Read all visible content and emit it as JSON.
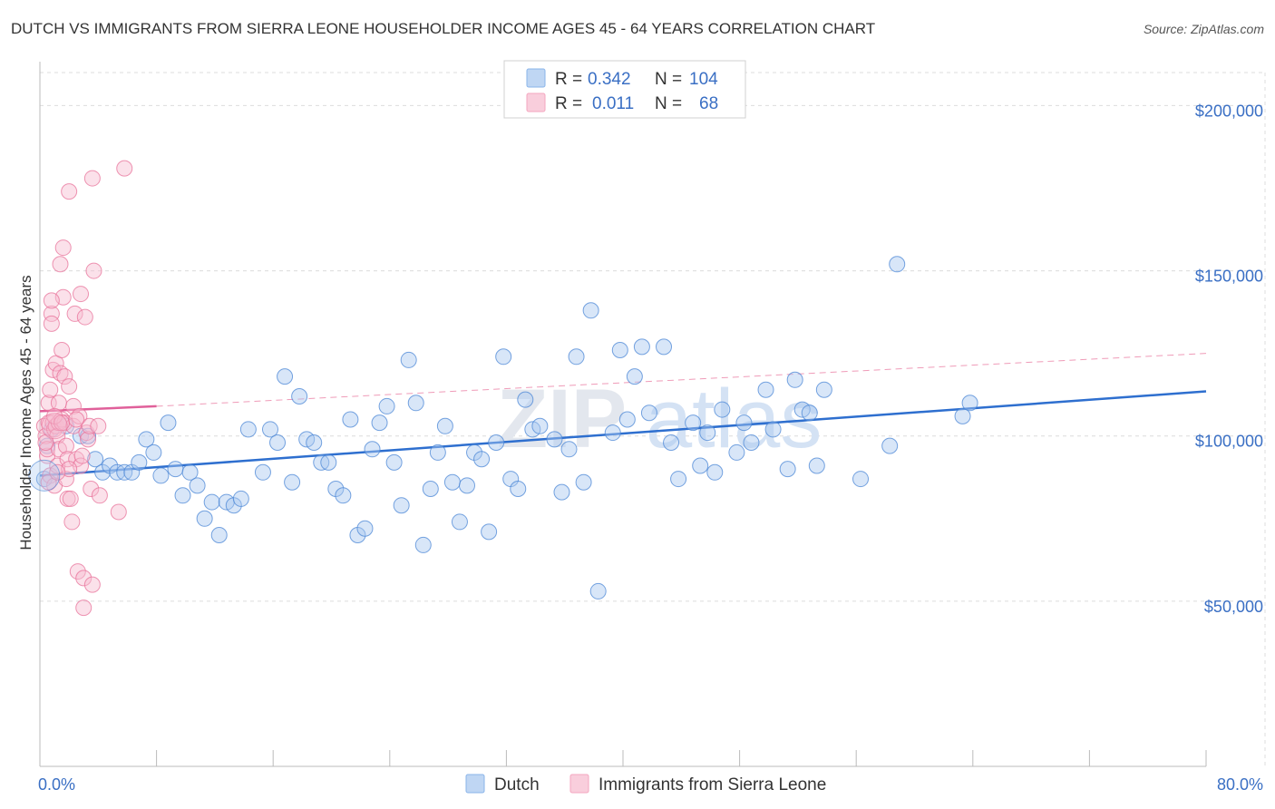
{
  "title": "DUTCH VS IMMIGRANTS FROM SIERRA LEONE HOUSEHOLDER INCOME AGES 45 - 64 YEARS CORRELATION CHART",
  "source": "Source: ZipAtlas.com",
  "watermark": {
    "zip": "ZIP",
    "atlas": "atlas"
  },
  "legend_top": [
    {
      "r_label": "R =",
      "r_value": "0.342",
      "n_label": "N =",
      "n_value": "104",
      "color": "#8ab4ea"
    },
    {
      "r_label": "R =",
      "r_value": "0.011",
      "n_label": "N =",
      "n_value": "68",
      "color": "#f4a6bf"
    }
  ],
  "legend_bottom": [
    {
      "label": "Dutch",
      "color": "#8ab4ea"
    },
    {
      "label": "Immigrants from Sierra Leone",
      "color": "#f4a6bf"
    }
  ],
  "chart_data": {
    "type": "scatter",
    "ylabel": "Householder Income Ages 45 - 64 years",
    "xlabel": "",
    "xlim": [
      0,
      80
    ],
    "ylim": [
      0,
      210000
    ],
    "x_tick_labels": [
      "0.0%",
      "80.0%"
    ],
    "y_ticks": [
      50000,
      100000,
      150000,
      200000
    ],
    "y_tick_labels": [
      "$50,000",
      "$100,000",
      "$150,000",
      "$200,000"
    ],
    "grid": true,
    "legend_position": "top-center",
    "series": [
      {
        "name": "Dutch",
        "color": "#4a86d6",
        "fill": "#a9c8f0",
        "trend": {
          "x": [
            0,
            80
          ],
          "y": [
            88000,
            113500
          ],
          "style": "solid"
        },
        "points": [
          [
            0.3,
            87000
          ],
          [
            0.8,
            102000
          ],
          [
            1.8,
            103000
          ],
          [
            2.8,
            100000
          ],
          [
            3.3,
            100000
          ],
          [
            3.8,
            93000
          ],
          [
            4.3,
            89000
          ],
          [
            4.8,
            91000
          ],
          [
            5.3,
            89000
          ],
          [
            5.8,
            89000
          ],
          [
            6.3,
            89000
          ],
          [
            6.8,
            92000
          ],
          [
            7.3,
            99000
          ],
          [
            7.8,
            95000
          ],
          [
            8.3,
            88000
          ],
          [
            8.8,
            104000
          ],
          [
            9.3,
            90000
          ],
          [
            9.8,
            82000
          ],
          [
            10.3,
            89000
          ],
          [
            10.8,
            85000
          ],
          [
            11.3,
            75000
          ],
          [
            11.8,
            80000
          ],
          [
            12.3,
            70000
          ],
          [
            12.8,
            80000
          ],
          [
            13.3,
            79000
          ],
          [
            13.8,
            81000
          ],
          [
            14.3,
            102000
          ],
          [
            15.3,
            89000
          ],
          [
            15.8,
            102000
          ],
          [
            16.3,
            98000
          ],
          [
            16.8,
            118000
          ],
          [
            17.3,
            86000
          ],
          [
            17.8,
            112000
          ],
          [
            18.3,
            99000
          ],
          [
            18.8,
            98000
          ],
          [
            19.3,
            92000
          ],
          [
            19.8,
            92000
          ],
          [
            20.3,
            84000
          ],
          [
            20.8,
            82000
          ],
          [
            21.3,
            105000
          ],
          [
            21.8,
            70000
          ],
          [
            22.3,
            72000
          ],
          [
            22.8,
            96000
          ],
          [
            23.3,
            104000
          ],
          [
            23.8,
            109000
          ],
          [
            24.3,
            92000
          ],
          [
            24.8,
            79000
          ],
          [
            25.3,
            123000
          ],
          [
            25.8,
            110000
          ],
          [
            26.3,
            67000
          ],
          [
            26.8,
            84000
          ],
          [
            27.3,
            95000
          ],
          [
            27.8,
            103000
          ],
          [
            28.3,
            86000
          ],
          [
            28.8,
            74000
          ],
          [
            29.3,
            85000
          ],
          [
            29.8,
            95000
          ],
          [
            30.3,
            93000
          ],
          [
            30.8,
            71000
          ],
          [
            31.3,
            98000
          ],
          [
            31.8,
            124000
          ],
          [
            32.3,
            87000
          ],
          [
            32.8,
            84000
          ],
          [
            33.3,
            111000
          ],
          [
            33.8,
            102000
          ],
          [
            34.3,
            103000
          ],
          [
            35.3,
            99000
          ],
          [
            35.8,
            83000
          ],
          [
            36.3,
            96000
          ],
          [
            36.8,
            124000
          ],
          [
            37.3,
            86000
          ],
          [
            37.8,
            138000
          ],
          [
            38.3,
            53000
          ],
          [
            39.3,
            101000
          ],
          [
            39.8,
            126000
          ],
          [
            40.3,
            105000
          ],
          [
            40.8,
            118000
          ],
          [
            41.3,
            127000
          ],
          [
            41.8,
            107000
          ],
          [
            42.8,
            127000
          ],
          [
            43.3,
            98000
          ],
          [
            43.8,
            87000
          ],
          [
            44.8,
            104000
          ],
          [
            45.3,
            91000
          ],
          [
            45.8,
            101000
          ],
          [
            46.3,
            89000
          ],
          [
            46.8,
            108000
          ],
          [
            47.8,
            95000
          ],
          [
            48.3,
            104000
          ],
          [
            48.8,
            98000
          ],
          [
            49.8,
            114000
          ],
          [
            50.3,
            102000
          ],
          [
            51.3,
            90000
          ],
          [
            51.8,
            117000
          ],
          [
            52.3,
            108000
          ],
          [
            52.8,
            107000
          ],
          [
            53.3,
            91000
          ],
          [
            53.8,
            114000
          ],
          [
            56.3,
            87000
          ],
          [
            58.3,
            97000
          ],
          [
            58.8,
            152000
          ],
          [
            63.3,
            106000
          ],
          [
            63.8,
            110000
          ],
          [
            0.5,
            97000
          ]
        ]
      },
      {
        "name": "Immigrants from Sierra Leone",
        "color": "#e8719a",
        "fill": "#f7bcd0",
        "trend": {
          "x": [
            0,
            8
          ],
          "y": [
            107500,
            109000
          ],
          "style": "solid",
          "extended": {
            "x": [
              8,
              80
            ],
            "y": [
              109000,
              125000
            ],
            "style": "dashed"
          }
        },
        "points": [
          [
            0.3,
            103000
          ],
          [
            0.4,
            100000
          ],
          [
            0.5,
            94000
          ],
          [
            0.5,
            96000
          ],
          [
            0.6,
            110000
          ],
          [
            0.6,
            104000
          ],
          [
            0.7,
            88000
          ],
          [
            0.7,
            114000
          ],
          [
            0.8,
            137000
          ],
          [
            0.8,
            134000
          ],
          [
            0.9,
            120000
          ],
          [
            0.9,
            104000
          ],
          [
            1.0,
            102000
          ],
          [
            1.0,
            85000
          ],
          [
            1.1,
            122000
          ],
          [
            1.1,
            103000
          ],
          [
            1.2,
            100000
          ],
          [
            1.2,
            91000
          ],
          [
            1.3,
            96000
          ],
          [
            1.3,
            104000
          ],
          [
            1.4,
            152000
          ],
          [
            1.4,
            119000
          ],
          [
            1.5,
            126000
          ],
          [
            1.5,
            105000
          ],
          [
            1.6,
            142000
          ],
          [
            1.6,
            157000
          ],
          [
            1.7,
            118000
          ],
          [
            1.7,
            104000
          ],
          [
            1.8,
            97000
          ],
          [
            1.8,
            87000
          ],
          [
            1.9,
            93000
          ],
          [
            1.9,
            81000
          ],
          [
            2.0,
            174000
          ],
          [
            2.0,
            115000
          ],
          [
            2.1,
            81000
          ],
          [
            2.2,
            74000
          ],
          [
            2.3,
            109000
          ],
          [
            2.3,
            103000
          ],
          [
            2.4,
            137000
          ],
          [
            2.5,
            93000
          ],
          [
            2.6,
            59000
          ],
          [
            2.7,
            106000
          ],
          [
            2.8,
            143000
          ],
          [
            2.8,
            91000
          ],
          [
            2.9,
            94000
          ],
          [
            3.0,
            57000
          ],
          [
            3.0,
            48000
          ],
          [
            3.1,
            136000
          ],
          [
            3.2,
            101000
          ],
          [
            3.3,
            99000
          ],
          [
            3.4,
            103000
          ],
          [
            3.5,
            84000
          ],
          [
            3.6,
            178000
          ],
          [
            3.7,
            150000
          ],
          [
            4.0,
            103000
          ],
          [
            4.1,
            82000
          ],
          [
            5.4,
            77000
          ],
          [
            5.8,
            181000
          ],
          [
            0.8,
            141000
          ],
          [
            1.3,
            110000
          ],
          [
            0.6,
            86000
          ],
          [
            1.0,
            106000
          ],
          [
            1.5,
            104000
          ],
          [
            2.0,
            90000
          ],
          [
            0.4,
            98000
          ],
          [
            1.2,
            89000
          ],
          [
            2.5,
            105000
          ],
          [
            3.6,
            55000
          ]
        ]
      }
    ]
  }
}
